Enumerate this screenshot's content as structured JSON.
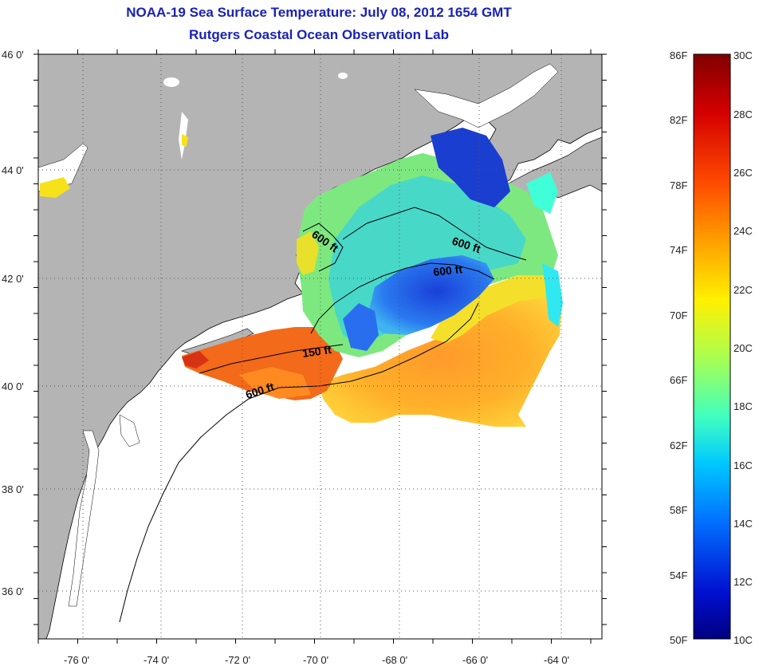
{
  "title": {
    "line1": "NOAA-19 Sea Surface Temperature:  July 08, 2012 1654 GMT",
    "line2": "Rutgers Coastal Ocean Observation Lab"
  },
  "map": {
    "lat_range": [
      35,
      46
    ],
    "lon_range": [
      -77,
      -63
    ],
    "lat_tick_labels": [
      "46 0'",
      "44 0'",
      "42 0'",
      "40 0'",
      "38 0'",
      "36 0'"
    ],
    "lon_tick_labels": [
      "-76 0'",
      "-74 0'",
      "-72 0'",
      "-70 0'",
      "-68 0'",
      "-66 0'",
      "-64 0'"
    ],
    "contour_labels": [
      "600 ft",
      "600 ft",
      "600 ft",
      "150 ft",
      "600 ft"
    ],
    "colors": {
      "land": "#b4b4b4",
      "water_nodata": "#ffffff",
      "coast": "#000000",
      "grid": "#555555"
    }
  },
  "colorbar": {
    "fahrenheit_labels": [
      "86F",
      "82F",
      "78F",
      "74F",
      "70F",
      "66F",
      "62F",
      "58F",
      "54F",
      "50F"
    ],
    "celsius_labels": [
      "30C",
      "28C",
      "26C",
      "24C",
      "22C",
      "20C",
      "18C",
      "16C",
      "14C",
      "12C",
      "10C"
    ],
    "range_c": [
      10,
      30
    ],
    "colormap": [
      "#800000",
      "#d40000",
      "#ff4a00",
      "#ffa000",
      "#fff000",
      "#a8ff50",
      "#40ffc0",
      "#00c8ff",
      "#0070ff",
      "#0010d0",
      "#000080"
    ]
  }
}
